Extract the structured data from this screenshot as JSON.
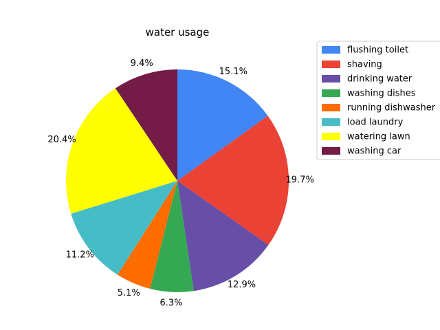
{
  "chart_data": {
    "type": "pie",
    "title": "water usage",
    "categories": [
      "flushing toilet",
      "shaving",
      "drinking water",
      "washing dishes",
      "running dishwasher",
      "load laundry",
      "watering lawn",
      "washing car"
    ],
    "values": [
      15.1,
      19.7,
      12.9,
      6.3,
      5.1,
      11.2,
      20.4,
      9.4
    ],
    "labels": [
      "15.1%",
      "19.7%",
      "12.9%",
      "6.3%",
      "5.1%",
      "11.2%",
      "20.4%",
      "9.4%"
    ],
    "colors": [
      "#4285f4",
      "#ea4335",
      "#674ea7",
      "#34a853",
      "#ff6d00",
      "#46bdc6",
      "#ffff00",
      "#741b47"
    ],
    "start_angle": 90,
    "direction": "clockwise",
    "legend_position": "right"
  }
}
